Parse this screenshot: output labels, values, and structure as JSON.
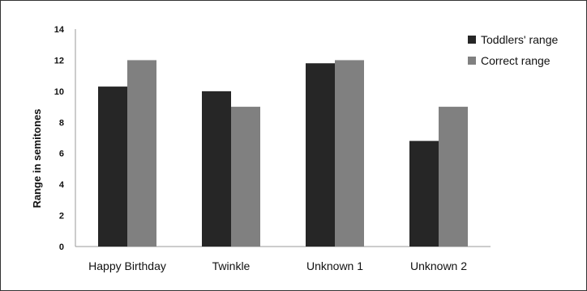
{
  "chart_data": {
    "type": "bar",
    "categories": [
      "Happy Birthday",
      "Twinkle",
      "Unknown 1",
      "Unknown 2"
    ],
    "series": [
      {
        "name": "Toddlers' range",
        "values": [
          10.3,
          10.0,
          11.8,
          6.8
        ],
        "color": "#262626"
      },
      {
        "name": "Correct range",
        "values": [
          12,
          9,
          12,
          9
        ],
        "color": "#808080"
      }
    ],
    "ylabel": "Range in semitones",
    "xlabel": "",
    "ylim": [
      0,
      14
    ],
    "yticks": [
      0,
      2,
      4,
      6,
      8,
      10,
      12,
      14
    ],
    "grid": false,
    "legend_position": "top-right"
  }
}
